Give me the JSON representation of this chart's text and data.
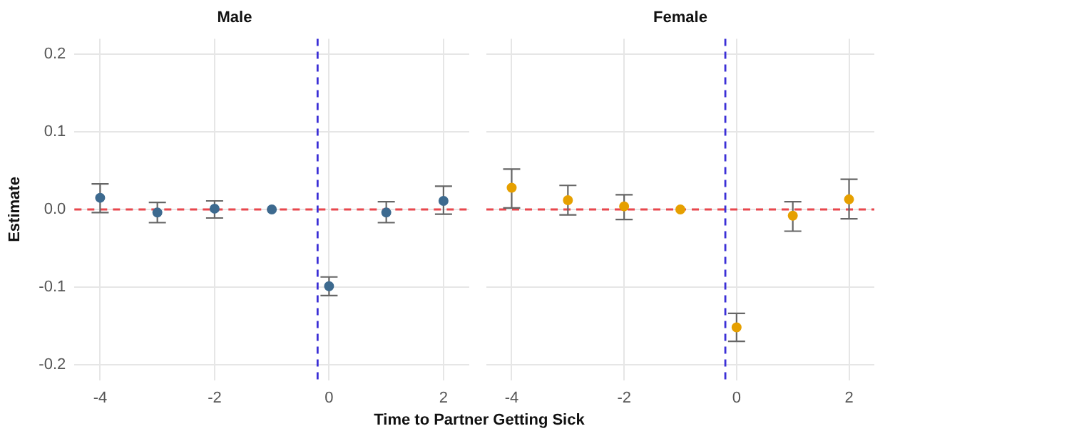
{
  "chart_data": [
    {
      "type": "scatter",
      "title": "Male",
      "xlabel": "Time to Partner Getting Sick",
      "ylabel": "Estimate",
      "x": [
        -4,
        -3,
        -2,
        -1,
        0,
        1,
        2
      ],
      "values": [
        0.015,
        -0.004,
        0.001,
        0,
        -0.099,
        -0.004,
        0.011
      ],
      "errors": [
        [
          -0.004,
          0.033
        ],
        [
          -0.017,
          0.009
        ],
        [
          -0.011,
          0.011
        ],
        null,
        [
          -0.111,
          -0.087
        ],
        [
          -0.017,
          0.01
        ],
        [
          -0.006,
          0.03
        ]
      ],
      "color": "#3d6a8f",
      "marker": "circle",
      "grid": true,
      "xlim": [
        -4.45,
        2.45
      ],
      "xticks": [
        -4,
        -2,
        0,
        2
      ],
      "ylim": [
        -0.22,
        0.22
      ],
      "yticks": [
        -0.2,
        -0.1,
        {
          "value": 0,
          "label": "0.0"
        },
        0.1,
        0.2
      ],
      "ref_lines": [
        {
          "axis": "y",
          "value": 0,
          "color": "#e8474d",
          "line_style": "dashed"
        },
        {
          "axis": "x",
          "value": -0.2,
          "color": "#3b2fd6",
          "line_style": "dashed"
        }
      ]
    },
    {
      "type": "scatter",
      "title": "Female",
      "x": [
        -4,
        -3,
        -2,
        -1,
        0,
        1,
        2
      ],
      "values": [
        0.028,
        0.012,
        0.004,
        0,
        -0.152,
        -0.008,
        0.013
      ],
      "errors": [
        [
          0.002,
          0.052
        ],
        [
          -0.007,
          0.031
        ],
        [
          -0.013,
          0.019
        ],
        null,
        [
          -0.17,
          -0.134
        ],
        [
          -0.028,
          0.01
        ],
        [
          -0.012,
          0.039
        ]
      ],
      "color": "#e6a000",
      "marker": "circle",
      "grid": true,
      "xlim": [
        -4.45,
        2.45
      ],
      "xticks": [
        -4,
        -2,
        0,
        2
      ],
      "ylim": [
        -0.22,
        0.22
      ],
      "yticks": [
        -0.2,
        -0.1,
        0,
        0.1,
        0.2
      ],
      "tick_labels": "x",
      "ref_lines": [
        {
          "axis": "y",
          "value": 0,
          "color": "#e8474d",
          "line_style": "dashed"
        },
        {
          "axis": "x",
          "value": -0.2,
          "color": "#3b2fd6",
          "line_style": "dashed"
        }
      ]
    }
  ]
}
